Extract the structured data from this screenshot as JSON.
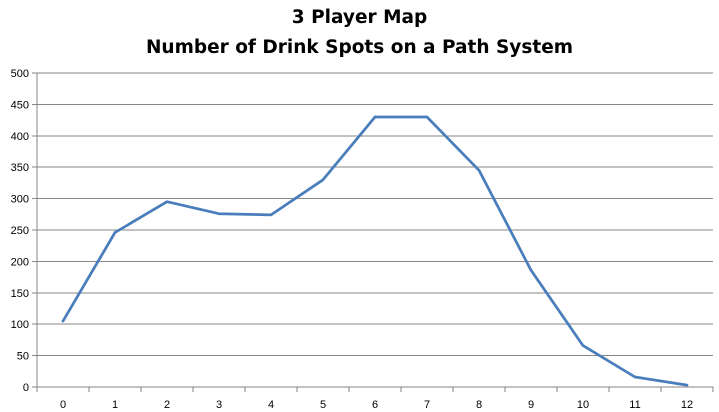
{
  "chart_data": {
    "type": "line",
    "title": "3 Player Map",
    "subtitle": "Number of Drink Spots on a Path System",
    "xlabel": "",
    "ylabel": "",
    "x": [
      0,
      1,
      2,
      3,
      4,
      5,
      6,
      7,
      8,
      9,
      10,
      11,
      12
    ],
    "series": [
      {
        "values": [
          105,
          246,
          295,
          276,
          274,
          330,
          430,
          430,
          345,
          186,
          66,
          16,
          3
        ]
      }
    ],
    "ylim": [
      0,
      500
    ],
    "yticks": [
      0,
      50,
      100,
      150,
      200,
      250,
      300,
      350,
      400,
      450,
      500
    ],
    "xticks": [
      0,
      1,
      2,
      3,
      4,
      5,
      6,
      7,
      8,
      9,
      10,
      11,
      12
    ],
    "grid": "horizontal",
    "legend": "none",
    "line_color": "#4a7ebb",
    "grid_color": "#868686"
  }
}
